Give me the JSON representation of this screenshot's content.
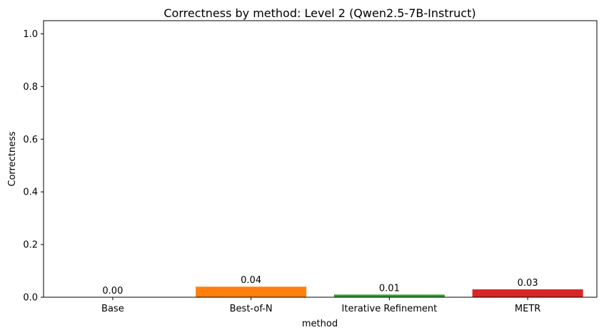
{
  "chart_data": {
    "type": "bar",
    "title": "Correctness by method: Level 2 (Qwen2.5-7B-Instruct)",
    "xlabel": "method",
    "ylabel": "Correctness",
    "categories": [
      "Base",
      "Best-of-N",
      "Iterative Refinement",
      "METR"
    ],
    "values": [
      0.0,
      0.04,
      0.01,
      0.03
    ],
    "value_labels": [
      "0.00",
      "0.04",
      "0.01",
      "0.03"
    ],
    "colors": [
      "#1f77b4",
      "#ff7f0e",
      "#2ca02c",
      "#d62728"
    ],
    "ylim": [
      0,
      1.05
    ],
    "yticks": [
      0.0,
      0.2,
      0.4,
      0.6,
      0.8,
      1.0
    ],
    "ytick_labels": [
      "0.0",
      "0.2",
      "0.4",
      "0.6",
      "0.8",
      "1.0"
    ],
    "grid": false,
    "legend": "none"
  }
}
